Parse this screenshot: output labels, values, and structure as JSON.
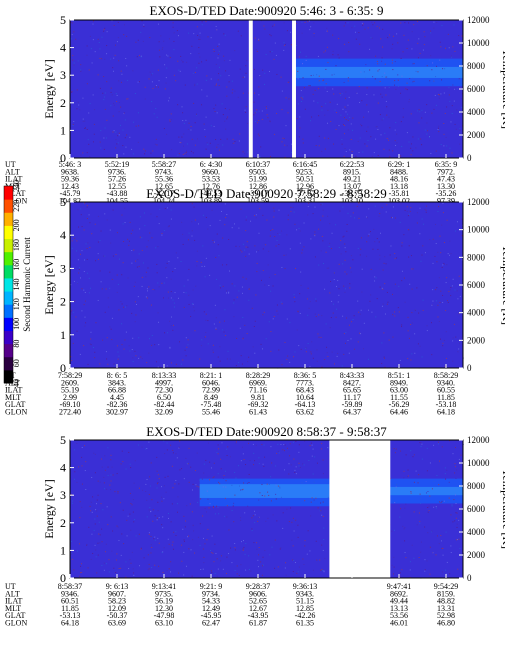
{
  "colorbar": {
    "label": "Second Harmonic Current",
    "ticks": [
      "40",
      "60",
      "80",
      "100",
      "120",
      "140",
      "160",
      "180",
      "200",
      "220",
      "240"
    ],
    "colors": [
      "#000000",
      "#2a0040",
      "#55008a",
      "#3a00c8",
      "#0000ff",
      "#0070ff",
      "#00b4ff",
      "#00e6e6",
      "#00dc64",
      "#50f000",
      "#c8f000",
      "#ffff00",
      "#ffb000",
      "#ff5000",
      "#ff0000"
    ]
  },
  "chart_data": [
    {
      "type": "heatmap",
      "title": "EXOS-D/TED   Date:900920  5:46: 3 - 6:35: 9",
      "ylabel": "Energy [eV]",
      "y2label": "Temperature [K]",
      "ylim": [
        0,
        5
      ],
      "y2lim": [
        0,
        12000
      ],
      "yticks": [
        "0",
        "1",
        "2",
        "3",
        "4",
        "5"
      ],
      "y2ticks": [
        "0",
        "2000",
        "4000",
        "6000",
        "8000",
        "10000",
        "12000"
      ],
      "gaps": [
        [
          0.455,
          0.465
        ],
        [
          0.565,
          0.575
        ]
      ],
      "band": {
        "x_start": 0.575,
        "x_end": 1.0,
        "y_low": 2.6,
        "y_high": 3.6,
        "core_low": 2.9,
        "core_high": 3.3
      },
      "table": {
        "row_labels": [
          "UT",
          "ALT",
          "ILAT",
          "MLT",
          "GLAT",
          "GLON"
        ],
        "columns": [
          [
            "5:46: 3",
            "9638.",
            "59.36",
            "12.43",
            "-45.79",
            "104.82"
          ],
          [
            "5:52:19",
            "9736.",
            "57.26",
            "12.55",
            "-43.88",
            "104.55"
          ],
          [
            "5:58:27",
            "9743.",
            "55.36",
            "12.65",
            "-42.17",
            "104.24"
          ],
          [
            "6: 4:30",
            "9660.",
            "53.53",
            "12.76",
            "-40.53",
            "103.89"
          ],
          [
            "6:10:37",
            "9503.",
            "51.99",
            "12.86",
            "-39.17",
            "103.59"
          ],
          [
            "6:16:45",
            "9253.",
            "50.51",
            "12.96",
            "-37.87",
            "103.31"
          ],
          [
            "6:22:53",
            "8915.",
            "49.21",
            "13.07",
            "-36.73",
            "103.10"
          ],
          [
            "6:29: 1",
            "8488.",
            "48.16",
            "13.18",
            "-35.81",
            "103.02"
          ],
          [
            "6:35: 9",
            "7972.",
            "47.43",
            "13.30",
            "-35.26",
            "97.39"
          ]
        ]
      }
    },
    {
      "type": "heatmap",
      "title": "EXOS-D/TED   Date:900920  7:58:29 - 8:58:29",
      "ylabel": "Energy [eV]",
      "y2label": "Temperature [K]",
      "ylim": [
        0,
        5
      ],
      "y2lim": [
        0,
        12000
      ],
      "yticks": [
        "0",
        "1",
        "2",
        "3",
        "4",
        "5"
      ],
      "y2ticks": [
        "0",
        "2000",
        "4000",
        "6000",
        "8000",
        "10000",
        "12000"
      ],
      "gaps": [],
      "table": {
        "row_labels": [
          "UT",
          "ALT",
          "ILAT",
          "MLT",
          "GLAT",
          "GLON"
        ],
        "columns": [
          [
            "7:58:29",
            "2609.",
            "55.19",
            "2.99",
            "-69.10",
            "272.40"
          ],
          [
            "8: 6: 5",
            "3843.",
            "66.88",
            "4.45",
            "-82.36",
            "302.97"
          ],
          [
            "8:13:33",
            "4997.",
            "72.30",
            "6.50",
            "-82.44",
            "32.09"
          ],
          [
            "8:21: 1",
            "6046.",
            "72.99",
            "8.49",
            "-75.48",
            "55.46"
          ],
          [
            "8:28:29",
            "6969.",
            "71.16",
            "9.81",
            "-69.32",
            "61.43"
          ],
          [
            "8:36: 5",
            "7773.",
            "68.43",
            "10.64",
            "-64.13",
            "63.62"
          ],
          [
            "8:43:33",
            "8427.",
            "65.65",
            "11.17",
            "-59.89",
            "64.37"
          ],
          [
            "8:51: 1",
            "8949.",
            "63.00",
            "11.55",
            "-56.29",
            "64.46"
          ],
          [
            "8:58:29",
            "9340.",
            "60.55",
            "11.85",
            "-53.18",
            "64.18"
          ]
        ]
      }
    },
    {
      "type": "heatmap",
      "title": "EXOS-D/TED   Date:900920  8:58:37 - 9:58:37",
      "ylabel": "Energy [eV]",
      "y2label": "Temperature [K]",
      "ylim": [
        0,
        5
      ],
      "y2lim": [
        0,
        12000
      ],
      "yticks": [
        "0",
        "1",
        "2",
        "3",
        "4",
        "5"
      ],
      "y2ticks": [
        "0",
        "2000",
        "4000",
        "6000",
        "8000",
        "10000",
        "12000"
      ],
      "gaps": [
        [
          0.66,
          0.815
        ]
      ],
      "band": {
        "x_start": 0.33,
        "x_end": 0.66,
        "y_low": 2.6,
        "y_high": 3.6,
        "core_low": 2.9,
        "core_high": 3.4
      },
      "band2": {
        "x_start": 0.815,
        "x_end": 1.0,
        "y_low": 2.7,
        "y_high": 3.6,
        "core_low": 3.0,
        "core_high": 3.3
      },
      "table": {
        "row_labels": [
          "UT",
          "ALT",
          "ILAT",
          "MLT",
          "GLAT",
          "GLON"
        ],
        "columns": [
          [
            "8:58:37",
            "9346.",
            "60.51",
            "11.85",
            "-53.13",
            "64.18"
          ],
          [
            "9: 6:13",
            "9607.",
            "58.23",
            "12.09",
            "-50.37",
            "63.69"
          ],
          [
            "9:13:41",
            "9735.",
            "56.19",
            "12.30",
            "-47.98",
            "63.10"
          ],
          [
            "9:21: 9",
            "9734.",
            "54.33",
            "12.49",
            "-45.95",
            "62.47"
          ],
          [
            "9:28:37",
            "9606.",
            "52.65",
            "12.67",
            "-43.95",
            "61.87"
          ],
          [
            "9:36:13",
            "9343.",
            "51.15",
            "12.85",
            "-42.26",
            "61.35"
          ],
          [
            " ",
            " ",
            " ",
            " ",
            " ",
            " "
          ],
          [
            "9:47:41",
            "8692.",
            "49.44",
            "13.13",
            "53.56",
            "46.01"
          ],
          [
            "9:54:29",
            "8159.",
            "48.82",
            "13.31",
            "52.98",
            "46.80"
          ]
        ]
      }
    }
  ]
}
